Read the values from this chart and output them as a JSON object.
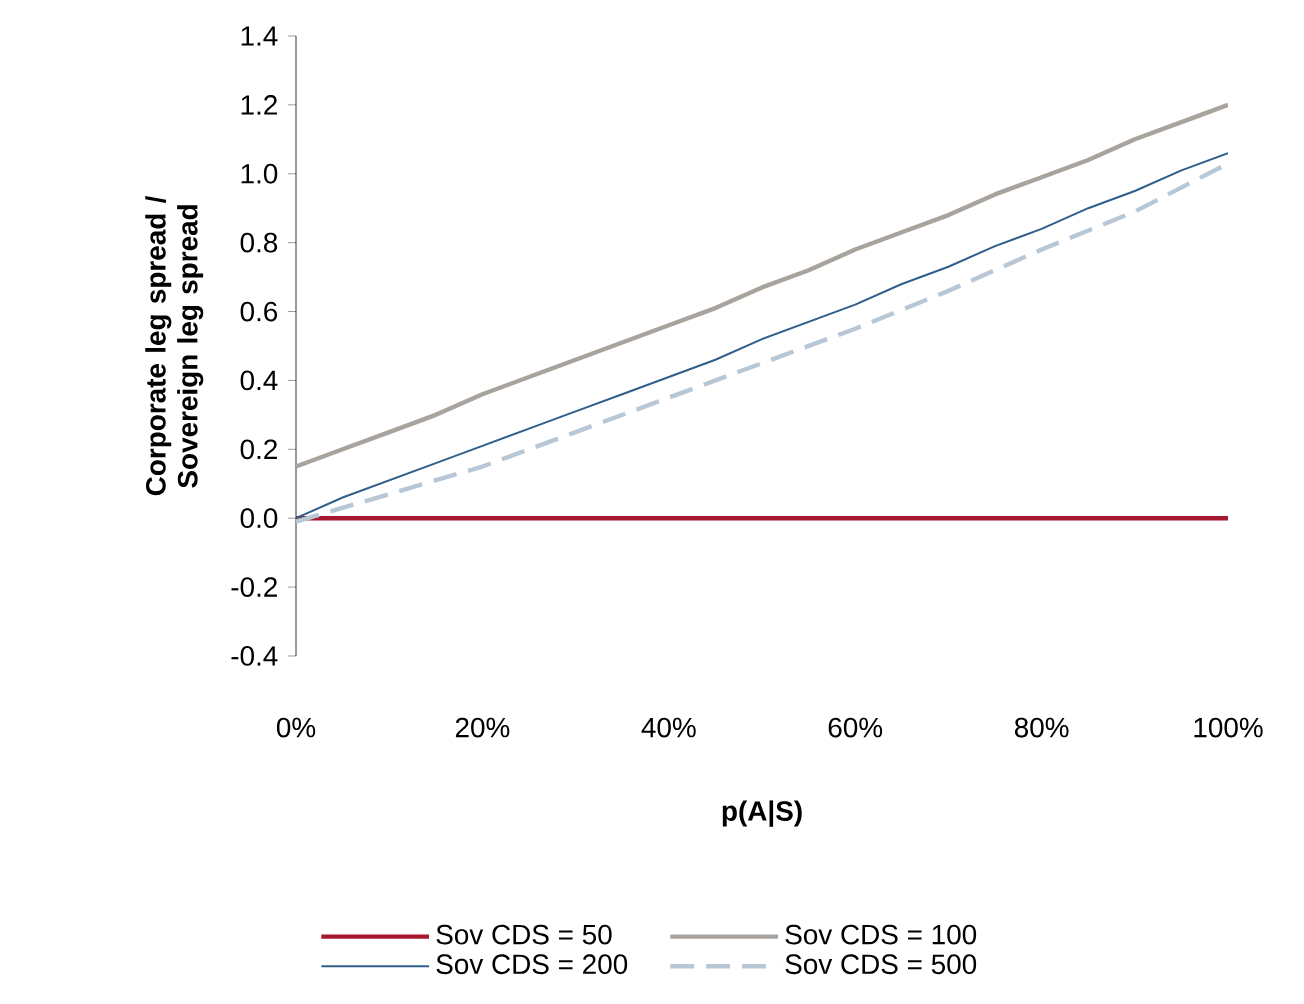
{
  "chart_data": {
    "type": "line",
    "xlabel": "p(A|S)",
    "ylabel": "Corporate leg spread / Sovereign leg spread",
    "xlim": [
      0,
      100
    ],
    "ylim": [
      -0.4,
      1.4
    ],
    "xticks": [
      {
        "value": 0,
        "label": "0%"
      },
      {
        "value": 20,
        "label": "20%"
      },
      {
        "value": 40,
        "label": "40%"
      },
      {
        "value": 60,
        "label": "60%"
      },
      {
        "value": 80,
        "label": "80%"
      },
      {
        "value": 100,
        "label": "100%"
      }
    ],
    "yticks": [
      {
        "value": -0.4,
        "label": "-0.4"
      },
      {
        "value": -0.2,
        "label": "-0.2"
      },
      {
        "value": 0,
        "label": "0.0"
      },
      {
        "value": 0.2,
        "label": "0.2"
      },
      {
        "value": 0.4,
        "label": "0.4"
      },
      {
        "value": 0.6,
        "label": "0.6"
      },
      {
        "value": 0.8,
        "label": "0.8"
      },
      {
        "value": 1.0,
        "label": "1.0"
      },
      {
        "value": 1.2,
        "label": "1.2"
      },
      {
        "value": 1.4,
        "label": "1.4"
      }
    ],
    "legend": "bottom",
    "grid": false,
    "marker": "none",
    "series": [
      {
        "name": "Sov CDS = 50",
        "color": "#a6192e",
        "line_style": "solid",
        "x": [
          0,
          100
        ],
        "values": [
          0,
          0
        ]
      },
      {
        "name": "Sov CDS = 100",
        "color": "#a8a39d",
        "line_style": "solid",
        "x": [
          0,
          5,
          10,
          15,
          20,
          25,
          30,
          35,
          40,
          45,
          50,
          55,
          60,
          65,
          70,
          75,
          80,
          85,
          90,
          95,
          100
        ],
        "values": [
          0.15,
          0.2,
          0.25,
          0.3,
          0.36,
          0.41,
          0.46,
          0.51,
          0.56,
          0.61,
          0.67,
          0.72,
          0.78,
          0.83,
          0.88,
          0.94,
          0.99,
          1.04,
          1.1,
          1.15,
          1.2
        ]
      },
      {
        "name": "Sov CDS = 200",
        "color": "#2f5f8a",
        "line_style": "solid",
        "x": [
          0,
          5,
          10,
          15,
          20,
          25,
          30,
          35,
          40,
          45,
          50,
          55,
          60,
          65,
          70,
          75,
          80,
          85,
          90,
          95,
          100
        ],
        "values": [
          0,
          0.06,
          0.11,
          0.16,
          0.21,
          0.26,
          0.31,
          0.36,
          0.41,
          0.46,
          0.52,
          0.57,
          0.62,
          0.68,
          0.73,
          0.79,
          0.84,
          0.9,
          0.95,
          1.01,
          1.06
        ]
      },
      {
        "name": "Sov CDS = 500",
        "color": "#b8c7d6",
        "line_style": "dashed",
        "x": [
          0,
          10,
          20,
          30,
          40,
          50,
          60,
          70,
          80,
          90,
          100
        ],
        "values": [
          -0.01,
          0.07,
          0.15,
          0.25,
          0.35,
          0.45,
          0.55,
          0.66,
          0.78,
          0.89,
          1.03
        ]
      }
    ]
  }
}
